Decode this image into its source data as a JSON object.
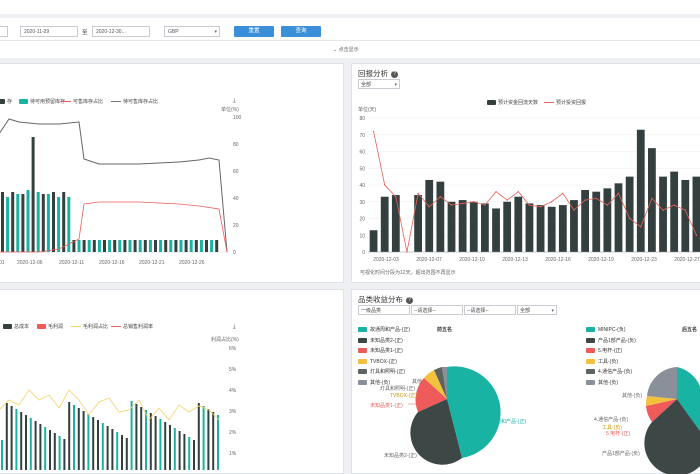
{
  "filters": {
    "date_start": "2020-11-29",
    "date_sep": "至",
    "date_end": "2020-12-30...",
    "currency": "GBP",
    "reset_label": "重置",
    "query_label": "查询",
    "collapse_label": "点击显示"
  },
  "left_top": {
    "legend": [
      "存",
      "待可用预留库存",
      "可售库存占比",
      "待可售库存占比"
    ],
    "y2_unit": "单位(%)",
    "y2_ticks": [
      "100",
      "80",
      "60",
      "40",
      "20",
      "0"
    ],
    "x_ticks": [
      "01",
      "2020-12-06",
      "2020-12-11",
      "2020-12-16",
      "2020-12-21",
      "2020-12-26"
    ]
  },
  "recovery": {
    "title": "回报分析",
    "dropdown": "全部",
    "legend_bar": "预计资金回流天数",
    "legend_line": "预计投资回报",
    "y_unit": "单位(天)",
    "y_ticks": [
      "80",
      "70",
      "60",
      "50",
      "40",
      "30",
      "20",
      "10",
      "0"
    ],
    "x_ticks": [
      "2020-12-03",
      "2020-12-07",
      "2020-12-10",
      "2020-12-13",
      "2020-12-16",
      "2020-12-19",
      "2020-12-23",
      "2020-12-27"
    ],
    "footnote": "可视化时间分段为12天，超出范围不再显示",
    "colors": {
      "bar": "#33403f",
      "line": "#e8635a"
    }
  },
  "chart_data": {
    "type": "bar",
    "title": "回报分析",
    "ylabel": "单位(天)",
    "ylim": [
      0,
      80
    ],
    "series": [
      {
        "name": "预计资金回流天数",
        "values": [
          13,
          33,
          34,
          0,
          34,
          43,
          42,
          30,
          31,
          30,
          29,
          26,
          30,
          33,
          29,
          28,
          27,
          28,
          31,
          37,
          36,
          38,
          41,
          45,
          73,
          62,
          45,
          48,
          43,
          45
        ]
      },
      {
        "name": "预计投资回报",
        "values": [
          72,
          40,
          33,
          0,
          35,
          27,
          33,
          28,
          29,
          30,
          28,
          36,
          31,
          36,
          28,
          27,
          30,
          35,
          25,
          31,
          32,
          28,
          35,
          20,
          15,
          32,
          25,
          28,
          25,
          10
        ]
      }
    ]
  },
  "left_bottom": {
    "legend": [
      "总成本",
      "毛利润",
      "毛利润占比",
      "总销售利润率"
    ],
    "y2_unit": "利润占比(%)",
    "y2_ticks": [
      "6%",
      "5%",
      "4%",
      "3%",
      "2%",
      "1%"
    ]
  },
  "category": {
    "title": "品类收益分布",
    "level_select": "一级品类",
    "pick1": "--请选择--",
    "pick2": "--请选择--",
    "scope": "全部",
    "top5_head": "前五名",
    "bottom5_head": "后五名",
    "top5": [
      {
        "label": "故通周和产品-(正)",
        "color": "#19b3a4"
      },
      {
        "label": "未知品类2-(正)",
        "color": "#3d4745"
      },
      {
        "label": "未知品类1-(正)",
        "color": "#ef5b5b"
      },
      {
        "label": "TVBOX-(正)",
        "color": "#f3c23c"
      },
      {
        "label": "灯具和照明-(正)",
        "color": "#5c6360"
      },
      {
        "label": "其他-(负)",
        "color": "#8a9099"
      }
    ],
    "bottom5": [
      {
        "label": "MINIPC-(负)",
        "color": "#19b3a4"
      },
      {
        "label": "产品1部产品-(负)",
        "color": "#3d4745"
      },
      {
        "label": "5.电杆-(正)",
        "color": "#ef5b5b"
      },
      {
        "label": "工具-(负)",
        "color": "#f3c23c"
      },
      {
        "label": "4.通信产品-(负)",
        "color": "#5c6360"
      },
      {
        "label": "其他-(负)",
        "color": "#8a9099"
      }
    ],
    "pie1_labels": [
      "故通周和产品-(正)",
      "未知品类2-(正)",
      "未知品类1-(正)",
      "灯具和照明-(正)",
      "TVBOX-(正)",
      "其他"
    ],
    "pie2_labels": [
      "其他-(负)",
      "4.通信产品-(负)",
      "工具-(负)",
      "5.电杆-(正)",
      "产品1部产品-(负)"
    ]
  }
}
